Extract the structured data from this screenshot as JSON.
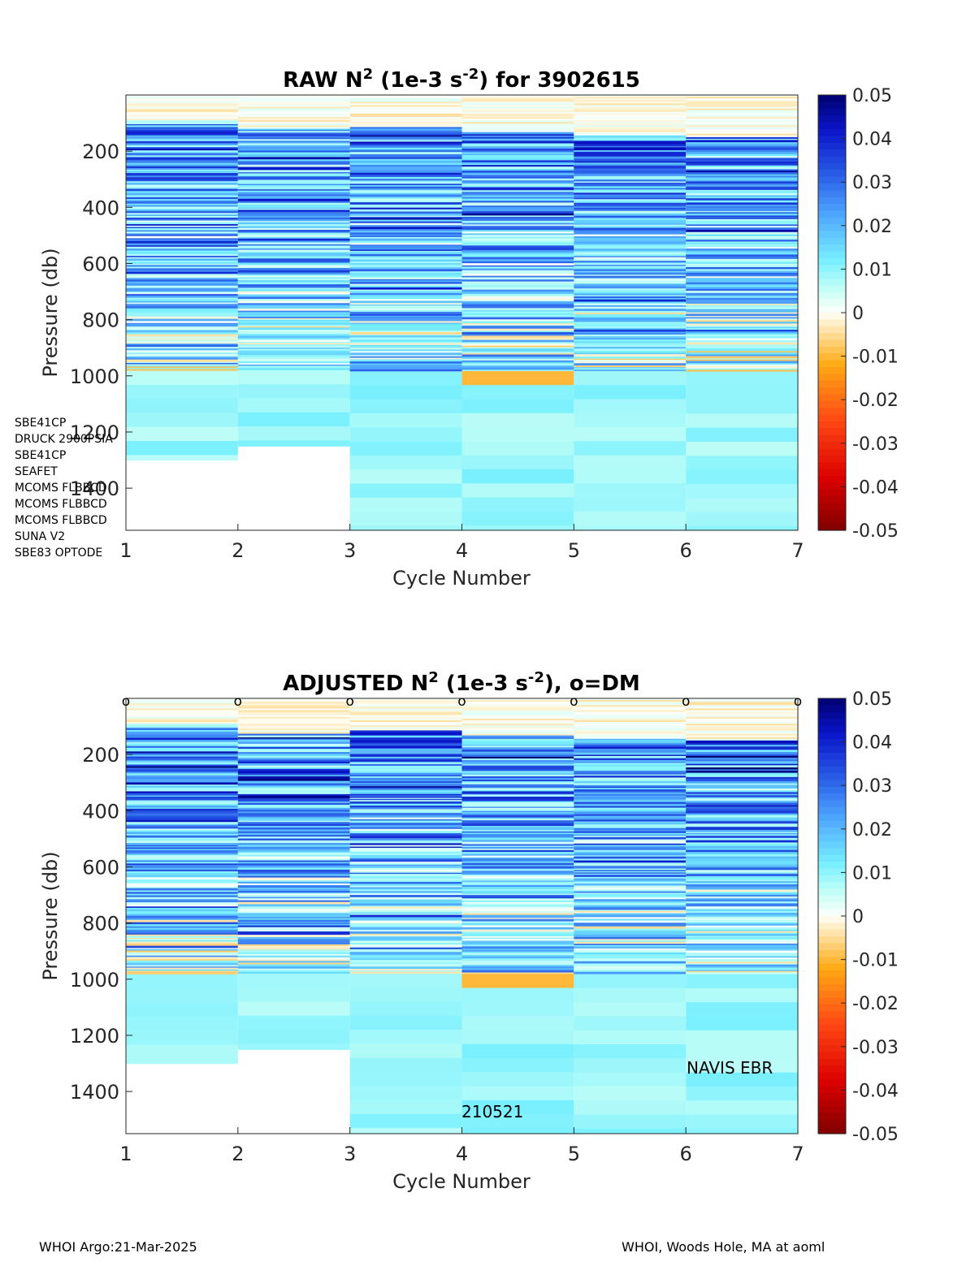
{
  "figure": {
    "footer_left": "WHOI Argo:21-Mar-2025",
    "footer_right": "WHOI, Woods Hole, MA at aoml",
    "sensors": [
      "SBE41CP",
      "DRUCK 2900PSIA",
      "SBE41CP",
      "SEAFET",
      "MCOMS FLBBCD",
      "MCOMS FLBBCD",
      "MCOMS FLBBCD",
      "SUNA V2",
      "SBE83 OPTODE"
    ],
    "float_type": "NAVIS EBR",
    "deploy_date": "210521",
    "colors": {
      "axis": "#262626",
      "title": "#000000",
      "dm_marker": "#000000"
    }
  },
  "chart_data": [
    {
      "type": "heatmap",
      "title_prefix": "RAW N",
      "title_sup1": "2",
      "title_mid": " (1e-3 s",
      "title_sup2": "-2",
      "title_suffix": ") for 3902615",
      "xlabel": "Cycle Number",
      "ylabel": "Pressure (db)",
      "xlim": [
        1,
        7
      ],
      "ylim": [
        0,
        1550
      ],
      "xticks": [
        1,
        2,
        3,
        4,
        5,
        6,
        7
      ],
      "yticks": [
        200,
        400,
        600,
        800,
        1000,
        1200,
        1400
      ],
      "colorbar": {
        "range": [
          -0.05,
          0.05
        ],
        "ticks": [
          "0.05",
          "0.04",
          "0.03",
          "0.02",
          "0.01",
          "0",
          "-0.01",
          "-0.02",
          "-0.03",
          "-0.04",
          "-0.05"
        ]
      },
      "profiles": [
        {
          "cycle": 1,
          "max_pressure": 1300,
          "strong_top": 90
        },
        {
          "cycle": 2,
          "max_pressure": 1250,
          "strong_top": 115
        },
        {
          "cycle": 3,
          "max_pressure": 1550,
          "strong_top": 110
        },
        {
          "cycle": 4,
          "max_pressure": 1550,
          "strong_top": 130
        },
        {
          "cycle": 5,
          "max_pressure": 1550,
          "strong_top": 140
        },
        {
          "cycle": 6,
          "max_pressure": 1550,
          "strong_top": 150
        }
      ],
      "dm_markers": []
    },
    {
      "type": "heatmap",
      "title_prefix": "ADJUSTED N",
      "title_sup1": "2",
      "title_mid": " (1e-3 s",
      "title_sup2": "-2",
      "title_suffix": "), o=DM",
      "xlabel": "Cycle Number",
      "ylabel": "Pressure (db)",
      "xlim": [
        1,
        7
      ],
      "ylim": [
        0,
        1550
      ],
      "xticks": [
        1,
        2,
        3,
        4,
        5,
        6,
        7
      ],
      "yticks": [
        200,
        400,
        600,
        800,
        1000,
        1200,
        1400
      ],
      "colorbar": {
        "range": [
          -0.05,
          0.05
        ],
        "ticks": [
          "0.05",
          "0.04",
          "0.03",
          "0.02",
          "0.01",
          "0",
          "-0.01",
          "-0.02",
          "-0.03",
          "-0.04",
          "-0.05"
        ]
      },
      "profiles": [
        {
          "cycle": 1,
          "max_pressure": 1300,
          "strong_top": 90
        },
        {
          "cycle": 2,
          "max_pressure": 1250,
          "strong_top": 125
        },
        {
          "cycle": 3,
          "max_pressure": 1550,
          "strong_top": 110
        },
        {
          "cycle": 4,
          "max_pressure": 1550,
          "strong_top": 130
        },
        {
          "cycle": 5,
          "max_pressure": 1550,
          "strong_top": 140
        },
        {
          "cycle": 6,
          "max_pressure": 1550,
          "strong_top": 150
        }
      ],
      "dm_markers": [
        1,
        2,
        3,
        4,
        5,
        6,
        7
      ],
      "dm_label": "o"
    }
  ]
}
